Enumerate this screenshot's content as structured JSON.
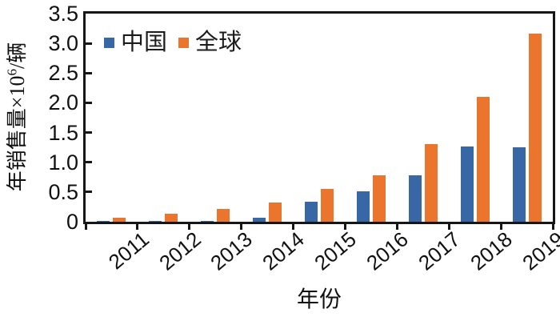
{
  "chart_data": {
    "type": "bar",
    "title": "",
    "categories": [
      "2011",
      "2012",
      "2013",
      "2014",
      "2015",
      "2016",
      "2017",
      "2018",
      "2019"
    ],
    "series": [
      {
        "name": "中国",
        "color": "#3768A5",
        "values": [
          0.01,
          0.01,
          0.02,
          0.07,
          0.33,
          0.51,
          0.78,
          1.26,
          1.25
        ]
      },
      {
        "name": "全球",
        "color": "#EC752E",
        "values": [
          0.07,
          0.14,
          0.21,
          0.32,
          0.55,
          0.78,
          1.31,
          2.1,
          3.17
        ]
      }
    ],
    "xlabel": "年份",
    "ylabel": "年销售量×10⁶/辆",
    "ylabel_parts": {
      "prefix": "年销售量×10",
      "sup": "6",
      "suffix": "/辆"
    },
    "ylim": [
      0,
      3.5
    ],
    "y_ticks": [
      {
        "value": 3.5,
        "label": "3.5"
      },
      {
        "value": 3.0,
        "label": "3.0"
      },
      {
        "value": 2.5,
        "label": "2.5"
      },
      {
        "value": 2.0,
        "label": "2.0"
      },
      {
        "value": 1.5,
        "label": "1.5"
      },
      {
        "value": 1.0,
        "label": "1.0"
      },
      {
        "value": 0.5,
        "label": "0.5"
      },
      {
        "value": 0,
        "label": "0"
      }
    ],
    "legend_position": "top-left",
    "grid": false,
    "axis_color": "#161616",
    "background_color": "#ffffff"
  }
}
